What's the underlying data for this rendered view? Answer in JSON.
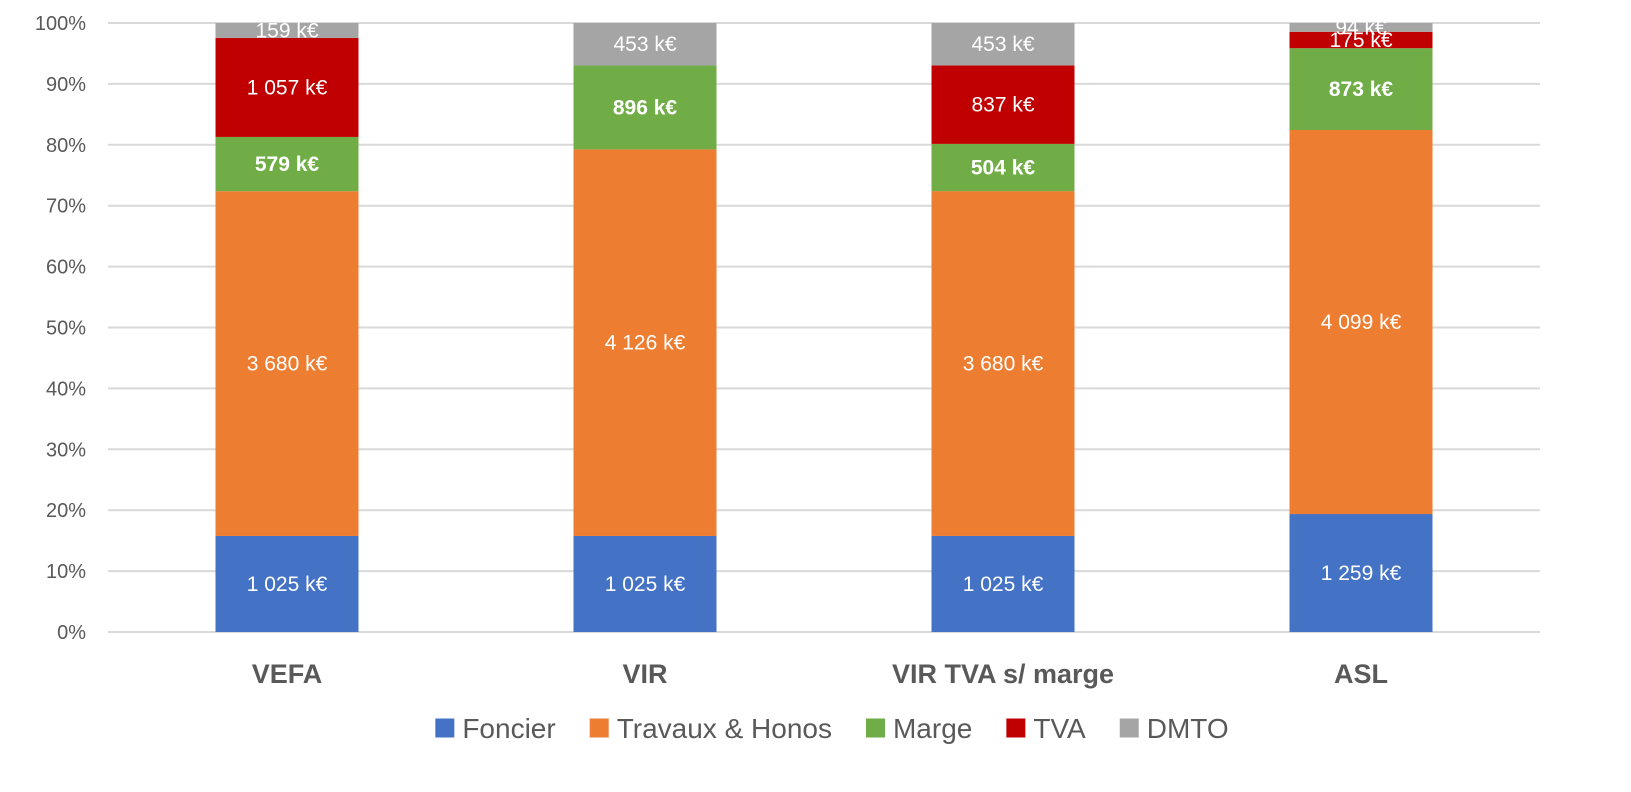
{
  "chart_data": {
    "type": "bar",
    "stacked": true,
    "normalized": true,
    "title": "",
    "xlabel": "",
    "ylabel": "",
    "ylim": [
      0,
      100
    ],
    "y_ticks": [
      "0%",
      "10%",
      "20%",
      "30%",
      "40%",
      "50%",
      "60%",
      "70%",
      "80%",
      "90%",
      "100%"
    ],
    "grid": true,
    "legend_position": "bottom",
    "categories": [
      "VEFA",
      "VIR",
      "VIR TVA s/ marge",
      "ASL"
    ],
    "series": [
      {
        "name": "Foncier",
        "color": "#4472C4",
        "bold_labels": false,
        "values": [
          1025,
          1025,
          1025,
          1259
        ],
        "labels": [
          "1 025 k€",
          "1 025 k€",
          "1 025 k€",
          "1 259 k€"
        ]
      },
      {
        "name": "Travaux & Honos",
        "color": "#ED7D31",
        "bold_labels": false,
        "values": [
          3680,
          4126,
          3680,
          4099
        ],
        "labels": [
          "3 680 k€",
          "4 126 k€",
          "3 680 k€",
          "4 099 k€"
        ]
      },
      {
        "name": "Marge",
        "color": "#70AD47",
        "bold_labels": true,
        "values": [
          579,
          896,
          504,
          873
        ],
        "labels": [
          "579 k€",
          "896 k€",
          "504 k€",
          "873 k€"
        ]
      },
      {
        "name": "TVA",
        "color": "#C00000",
        "bold_labels": false,
        "values": [
          1057,
          0,
          837,
          175
        ],
        "labels": [
          "1 057 k€",
          "",
          "837 k€",
          "175 k€"
        ]
      },
      {
        "name": "DMTO",
        "color": "#A5A5A5",
        "bold_labels": false,
        "values": [
          159,
          453,
          453,
          94
        ],
        "labels": [
          "159 k€",
          "453 k€",
          "453 k€",
          "94 k€"
        ]
      }
    ]
  }
}
